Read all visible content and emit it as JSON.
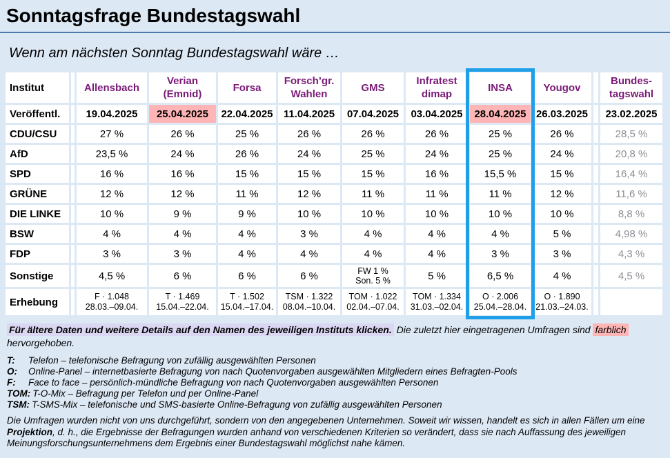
{
  "page": {
    "title": "Sonntagsfrage Bundestagswahl",
    "subtitle": "Wenn am nächsten Sonntag Bundestagswahl wäre …"
  },
  "colors": {
    "page_bg": "#dde8f5",
    "link_purple": "#7a1a78",
    "highlight_pink": "#ffb5b5",
    "highlight_lavender": "#dbd6f2",
    "insa_box_blue": "#1f9fe8",
    "muted_gray": "#8e8e96"
  },
  "table": {
    "header": {
      "institut": "Institut",
      "veroeffentl": "Veröffentl.",
      "erhebung": "Erhebung"
    },
    "columns": [
      {
        "lines": [
          "Allensbach"
        ],
        "date": "19.04.2025",
        "date_highlight": false,
        "boxed": false,
        "muted": false,
        "spacer_before": false,
        "survey": [
          "F · 1.048",
          "28.03.–09.04."
        ]
      },
      {
        "lines": [
          "Verian",
          "(Emnid)"
        ],
        "date": "25.04.2025",
        "date_highlight": true,
        "boxed": false,
        "muted": false,
        "spacer_before": false,
        "survey": [
          "T · 1.469",
          "15.04.–22.04."
        ]
      },
      {
        "lines": [
          "Forsa"
        ],
        "date": "22.04.2025",
        "date_highlight": false,
        "boxed": false,
        "muted": false,
        "spacer_before": false,
        "survey": [
          "T · 1.502",
          "15.04.–17.04."
        ]
      },
      {
        "lines": [
          "Forsch’gr.",
          "Wahlen"
        ],
        "date": "11.04.2025",
        "date_highlight": false,
        "boxed": false,
        "muted": false,
        "spacer_before": false,
        "survey": [
          "TSM · 1.322",
          "08.04.–10.04."
        ]
      },
      {
        "lines": [
          "GMS"
        ],
        "date": "07.04.2025",
        "date_highlight": false,
        "boxed": false,
        "muted": false,
        "spacer_before": false,
        "survey": [
          "TOM · 1.022",
          "02.04.–07.04."
        ]
      },
      {
        "lines": [
          "Infratest",
          "dimap"
        ],
        "date": "03.04.2025",
        "date_highlight": false,
        "boxed": false,
        "muted": false,
        "spacer_before": false,
        "survey": [
          "TOM · 1.334",
          "31.03.–02.04."
        ]
      },
      {
        "lines": [
          "INSA"
        ],
        "date": "28.04.2025",
        "date_highlight": true,
        "boxed": true,
        "muted": false,
        "spacer_before": false,
        "survey": [
          "O · 2.006",
          "25.04.–28.04."
        ]
      },
      {
        "lines": [
          "Yougov"
        ],
        "date": "26.03.2025",
        "date_highlight": false,
        "boxed": false,
        "muted": false,
        "spacer_before": false,
        "survey": [
          "O · 1.890",
          "21.03.–24.03."
        ]
      },
      {
        "lines": [
          "Bundes-",
          "tagswahl"
        ],
        "date": "23.02.2025",
        "date_highlight": false,
        "boxed": false,
        "muted": true,
        "spacer_before": true,
        "survey": []
      }
    ],
    "rows": [
      {
        "party": "CDU/CSU",
        "values": [
          "27 %",
          "26 %",
          "25 %",
          "26 %",
          "26 %",
          "26 %",
          "25 %",
          "26 %",
          "28,5 %"
        ]
      },
      {
        "party": "AfD",
        "values": [
          "23,5 %",
          "24 %",
          "26 %",
          "24 %",
          "25 %",
          "24 %",
          "25 %",
          "24 %",
          "20,8 %"
        ]
      },
      {
        "party": "SPD",
        "values": [
          "16 %",
          "16 %",
          "15 %",
          "15 %",
          "15 %",
          "16 %",
          "15,5 %",
          "15 %",
          "16,4 %"
        ]
      },
      {
        "party": "GRÜNE",
        "values": [
          "12 %",
          "12 %",
          "11 %",
          "12 %",
          "11 %",
          "11 %",
          "11 %",
          "12 %",
          "11,6 %"
        ]
      },
      {
        "party": "DIE LINKE",
        "values": [
          "10 %",
          "9 %",
          "9 %",
          "10 %",
          "10 %",
          "10 %",
          "10 %",
          "10 %",
          "8,8 %"
        ]
      },
      {
        "party": "BSW",
        "values": [
          "4 %",
          "4 %",
          "4 %",
          "3 %",
          "4 %",
          "4 %",
          "4 %",
          "5 %",
          "4,98 %"
        ]
      },
      {
        "party": "FDP",
        "values": [
          "3 %",
          "3 %",
          "4 %",
          "4 %",
          "4 %",
          "4 %",
          "3 %",
          "3 %",
          "4,3 %"
        ]
      },
      {
        "party": "Sonstige",
        "values": [
          "4,5 %",
          "6 %",
          "6 %",
          "6 %",
          [
            "FW 1 %",
            "Son. 5 %"
          ],
          "5 %",
          "6,5 %",
          "4 %",
          "4,5 %"
        ]
      }
    ]
  },
  "notes": {
    "hint_link_text": "Für ältere Daten und weitere Details auf den Namen des jeweiligen Instituts klicken.",
    "hint_mid": " Die zuletzt hier eingetragenen Umfragen sind ",
    "hint_marked": "farblich",
    "hint_tail": " hervorgehoben.",
    "legend": [
      {
        "abbr": "T:",
        "text": "Telefon – telefonische Befragung von zufällig ausgewählten Personen"
      },
      {
        "abbr": "O:",
        "text": "Online-Panel – internetbasierte Befragung von nach Quotenvorgaben ausgewählten Mitgliedern eines Befragten-Pools"
      },
      {
        "abbr": "F:",
        "text": "Face to face – persönlich-mündliche Befragung von nach Quotenvorgaben ausgewählten Personen"
      },
      {
        "abbr": "TOM:",
        "text": "T-O-Mix – Befragung per Telefon und per Online-Panel"
      },
      {
        "abbr": "TSM:",
        "text": "T-SMS-Mix – telefonische und SMS-basierte Online-Befragung von zufällig ausgewählten Personen"
      }
    ],
    "disclaimer_1": "Die Umfragen wurden nicht von uns durchgeführt, sondern von den angegebenen Unternehmen. Soweit wir wissen, handelt es sich in allen Fällen um eine ",
    "disclaimer_bold": "Projektion",
    "disclaimer_2": ", d. h., die Ergebnisse der Befragungen wurden anhand von verschiedenen Kriterien so verändert, dass sie nach Auffassung des jeweiligen Meinungsforschungsunternehmens dem Ergebnis einer Bundestagswahl möglichst nahe kämen."
  }
}
